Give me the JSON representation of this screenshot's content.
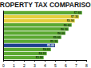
{
  "chart_data": {
    "type": "bar",
    "title": "PROPERTY TAX COMPARISON",
    "orientation": "horizontal",
    "categories": [
      null,
      null,
      null,
      null,
      null,
      null,
      null,
      null,
      null,
      null,
      null,
      null
    ],
    "values": [
      7.6,
      7.3,
      6.9,
      6.6,
      6.3,
      6.0,
      5.6,
      5.3,
      5.0,
      4.6,
      4.2,
      3.9
    ],
    "value_labels": [
      "$7.60",
      "$7.30",
      "$6.90",
      "$6.60",
      "$6.30",
      "$6.00",
      "$5.60",
      "$5.30",
      "$5.00",
      "$4.60",
      "$4.20",
      "$3.90"
    ],
    "data_labels": true,
    "colors": [
      "#5aa832",
      "#e3cf3c",
      "#e3cf3c",
      "#5aa832",
      "#5aa832",
      "#5aa832",
      "#5aa832",
      "#5aa832",
      "#1f3f8f",
      "#5aa832",
      "#5aa832",
      "#5aa832"
    ],
    "xlim": [
      0,
      8
    ],
    "xticks": [
      0,
      1,
      2,
      3,
      4,
      5,
      6,
      7,
      8
    ],
    "grid": false
  }
}
